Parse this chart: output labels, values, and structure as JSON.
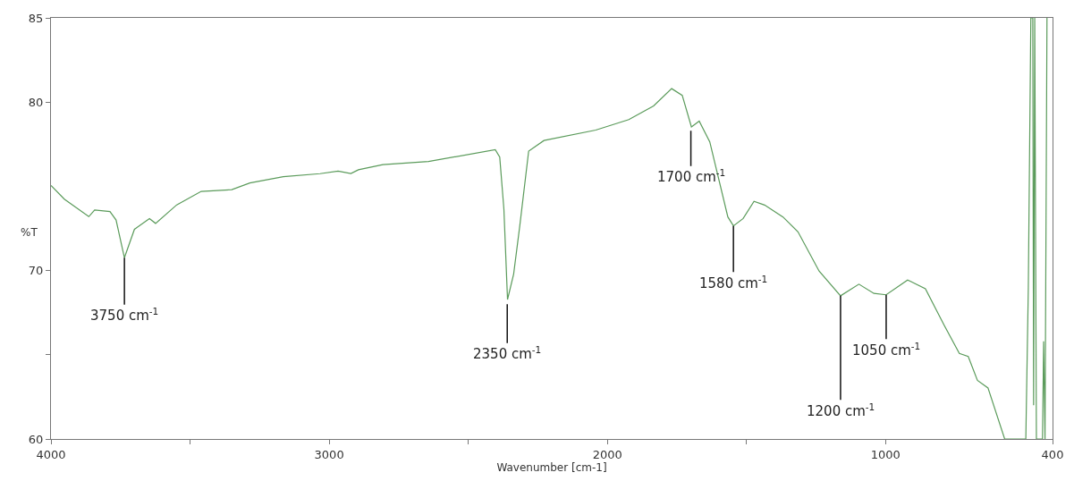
{
  "chart_data": {
    "type": "line",
    "xlabel": "Wavenumber [cm-1]",
    "ylabel": "%T",
    "xlim": [
      4000,
      400
    ],
    "xticks": [
      4000,
      {
        "value": 3500,
        "label": null
      },
      3000,
      {
        "value": 2500,
        "label": null
      },
      2000,
      {
        "value": 1500,
        "label": null
      },
      1000,
      400
    ],
    "ylim": [
      60,
      85
    ],
    "yticks": [
      60,
      {
        "value": 65,
        "label": null
      },
      70,
      80,
      85
    ],
    "marker": "none",
    "line_style": "solid",
    "series": [
      {
        "color": "#5b9b5b",
        "x": [
          4000,
          3952,
          3864,
          3843,
          3788,
          3766,
          3736,
          3700,
          3646,
          3624,
          3548,
          3460,
          3350,
          3285,
          3165,
          3033,
          2968,
          2922,
          2895,
          2807,
          2643,
          2403,
          2387,
          2372,
          2359,
          2337,
          2315,
          2283,
          2228,
          2042,
          1923,
          1834,
          1769,
          1731,
          1698,
          1670,
          1632,
          1567,
          1547,
          1512,
          1473,
          1435,
          1369,
          1315,
          1239,
          1162,
          1096,
          1042,
          998,
          921,
          857,
          790,
          735,
          703,
          670,
          632,
          572,
          496,
          487,
          478,
          471,
          468,
          464,
          458,
          436,
          432,
          427,
          420
        ],
        "values": [
          75.05,
          74.24,
          73.2,
          73.6,
          73.5,
          73.0,
          70.76,
          72.45,
          73.08,
          72.8,
          73.9,
          74.7,
          74.8,
          75.2,
          75.57,
          75.75,
          75.9,
          75.76,
          75.98,
          76.29,
          76.47,
          77.18,
          76.74,
          73.64,
          68.28,
          69.79,
          72.64,
          77.09,
          77.72,
          78.34,
          78.96,
          79.77,
          80.8,
          80.4,
          78.53,
          78.87,
          77.64,
          73.18,
          72.65,
          73.09,
          74.11,
          73.89,
          73.18,
          72.3,
          69.97,
          68.5,
          69.19,
          68.64,
          68.56,
          69.44,
          68.92,
          66.77,
          65.08,
          64.9,
          63.48,
          63.03,
          60,
          60,
          69,
          85,
          85,
          62,
          85,
          60,
          60,
          65.8,
          60,
          85
        ]
      }
    ],
    "annotations": [
      {
        "text": "3750 cm$^{-1}$",
        "x": 3736,
        "y": 70.76
      },
      {
        "text": "2350 cm$^{-1}$",
        "x": 2360,
        "y": 68.0
      },
      {
        "text": "1700 cm$^{-1}$",
        "x": 1700,
        "y": 78.3
      },
      {
        "text": "1580 cm$^{-1}$",
        "x": 1547,
        "y": 72.65
      },
      {
        "text": "1200 cm$^{-1}$",
        "x": 1162,
        "y": 68.5
      },
      {
        "text": "1050 cm$^{-1}$",
        "x": 998,
        "y": 68.56
      }
    ]
  }
}
